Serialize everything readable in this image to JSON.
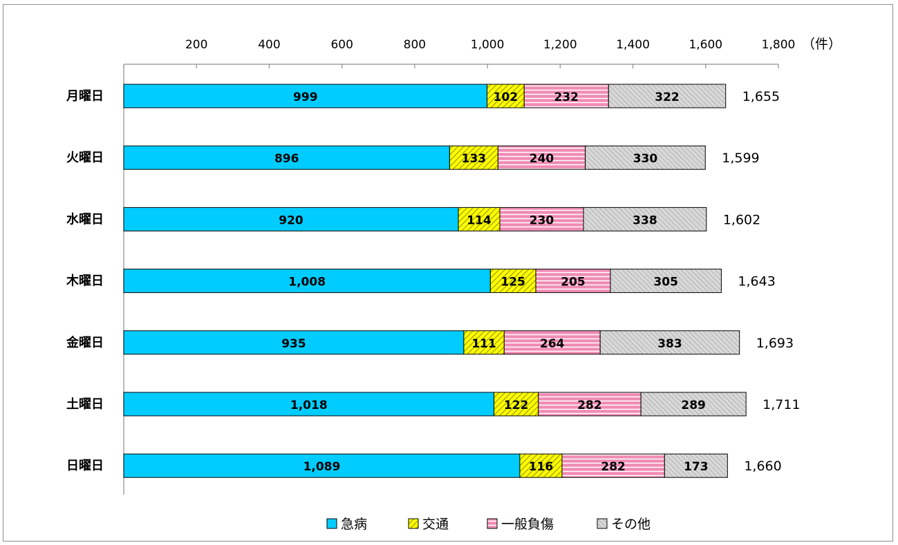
{
  "chart_data": {
    "type": "bar",
    "orientation": "horizontal",
    "stacked": true,
    "title": "",
    "xlabel": "",
    "ylabel": "",
    "unit_label": "（件）",
    "xlim": [
      0,
      1800
    ],
    "x_ticks": [
      200,
      400,
      600,
      800,
      1000,
      1200,
      1400,
      1600,
      1800
    ],
    "x_tick_labels": [
      "200",
      "400",
      "600",
      "800",
      "1,000",
      "1,200",
      "1,400",
      "1,600",
      "1,800"
    ],
    "axis_position": "top",
    "grid": false,
    "legend_position": "bottom",
    "categories": [
      "月曜日",
      "火曜日",
      "水曜日",
      "木曜日",
      "金曜日",
      "土曜日",
      "日曜日"
    ],
    "series": [
      {
        "name": "急病",
        "color": "#00ccff",
        "pattern": "solid",
        "values": [
          999,
          896,
          920,
          1008,
          935,
          1018,
          1089
        ],
        "labels": [
          "999",
          "896",
          "920",
          "1,008",
          "935",
          "1,018",
          "1,089"
        ]
      },
      {
        "name": "交通",
        "color": "#ffff00",
        "pattern": "diagonal-hatch",
        "values": [
          102,
          133,
          114,
          125,
          111,
          122,
          116
        ],
        "labels": [
          "102",
          "133",
          "114",
          "125",
          "111",
          "122",
          "116"
        ]
      },
      {
        "name": "一般負傷",
        "color": "#f08cb4",
        "pattern": "horizontal-lines",
        "values": [
          232,
          240,
          230,
          205,
          264,
          282,
          282
        ],
        "labels": [
          "232",
          "240",
          "230",
          "205",
          "264",
          "282",
          "282"
        ]
      },
      {
        "name": "その他",
        "color": "#d0d0d0",
        "pattern": "diagonal-hatch",
        "values": [
          322,
          330,
          338,
          305,
          383,
          289,
          173
        ],
        "labels": [
          "322",
          "330",
          "338",
          "305",
          "383",
          "289",
          "173"
        ]
      }
    ],
    "totals": [
      1655,
      1599,
      1602,
      1643,
      1693,
      1711,
      1660
    ],
    "total_labels": [
      "1,655",
      "1,599",
      "1,602",
      "1,643",
      "1,693",
      "1,711",
      "1,660"
    ]
  }
}
